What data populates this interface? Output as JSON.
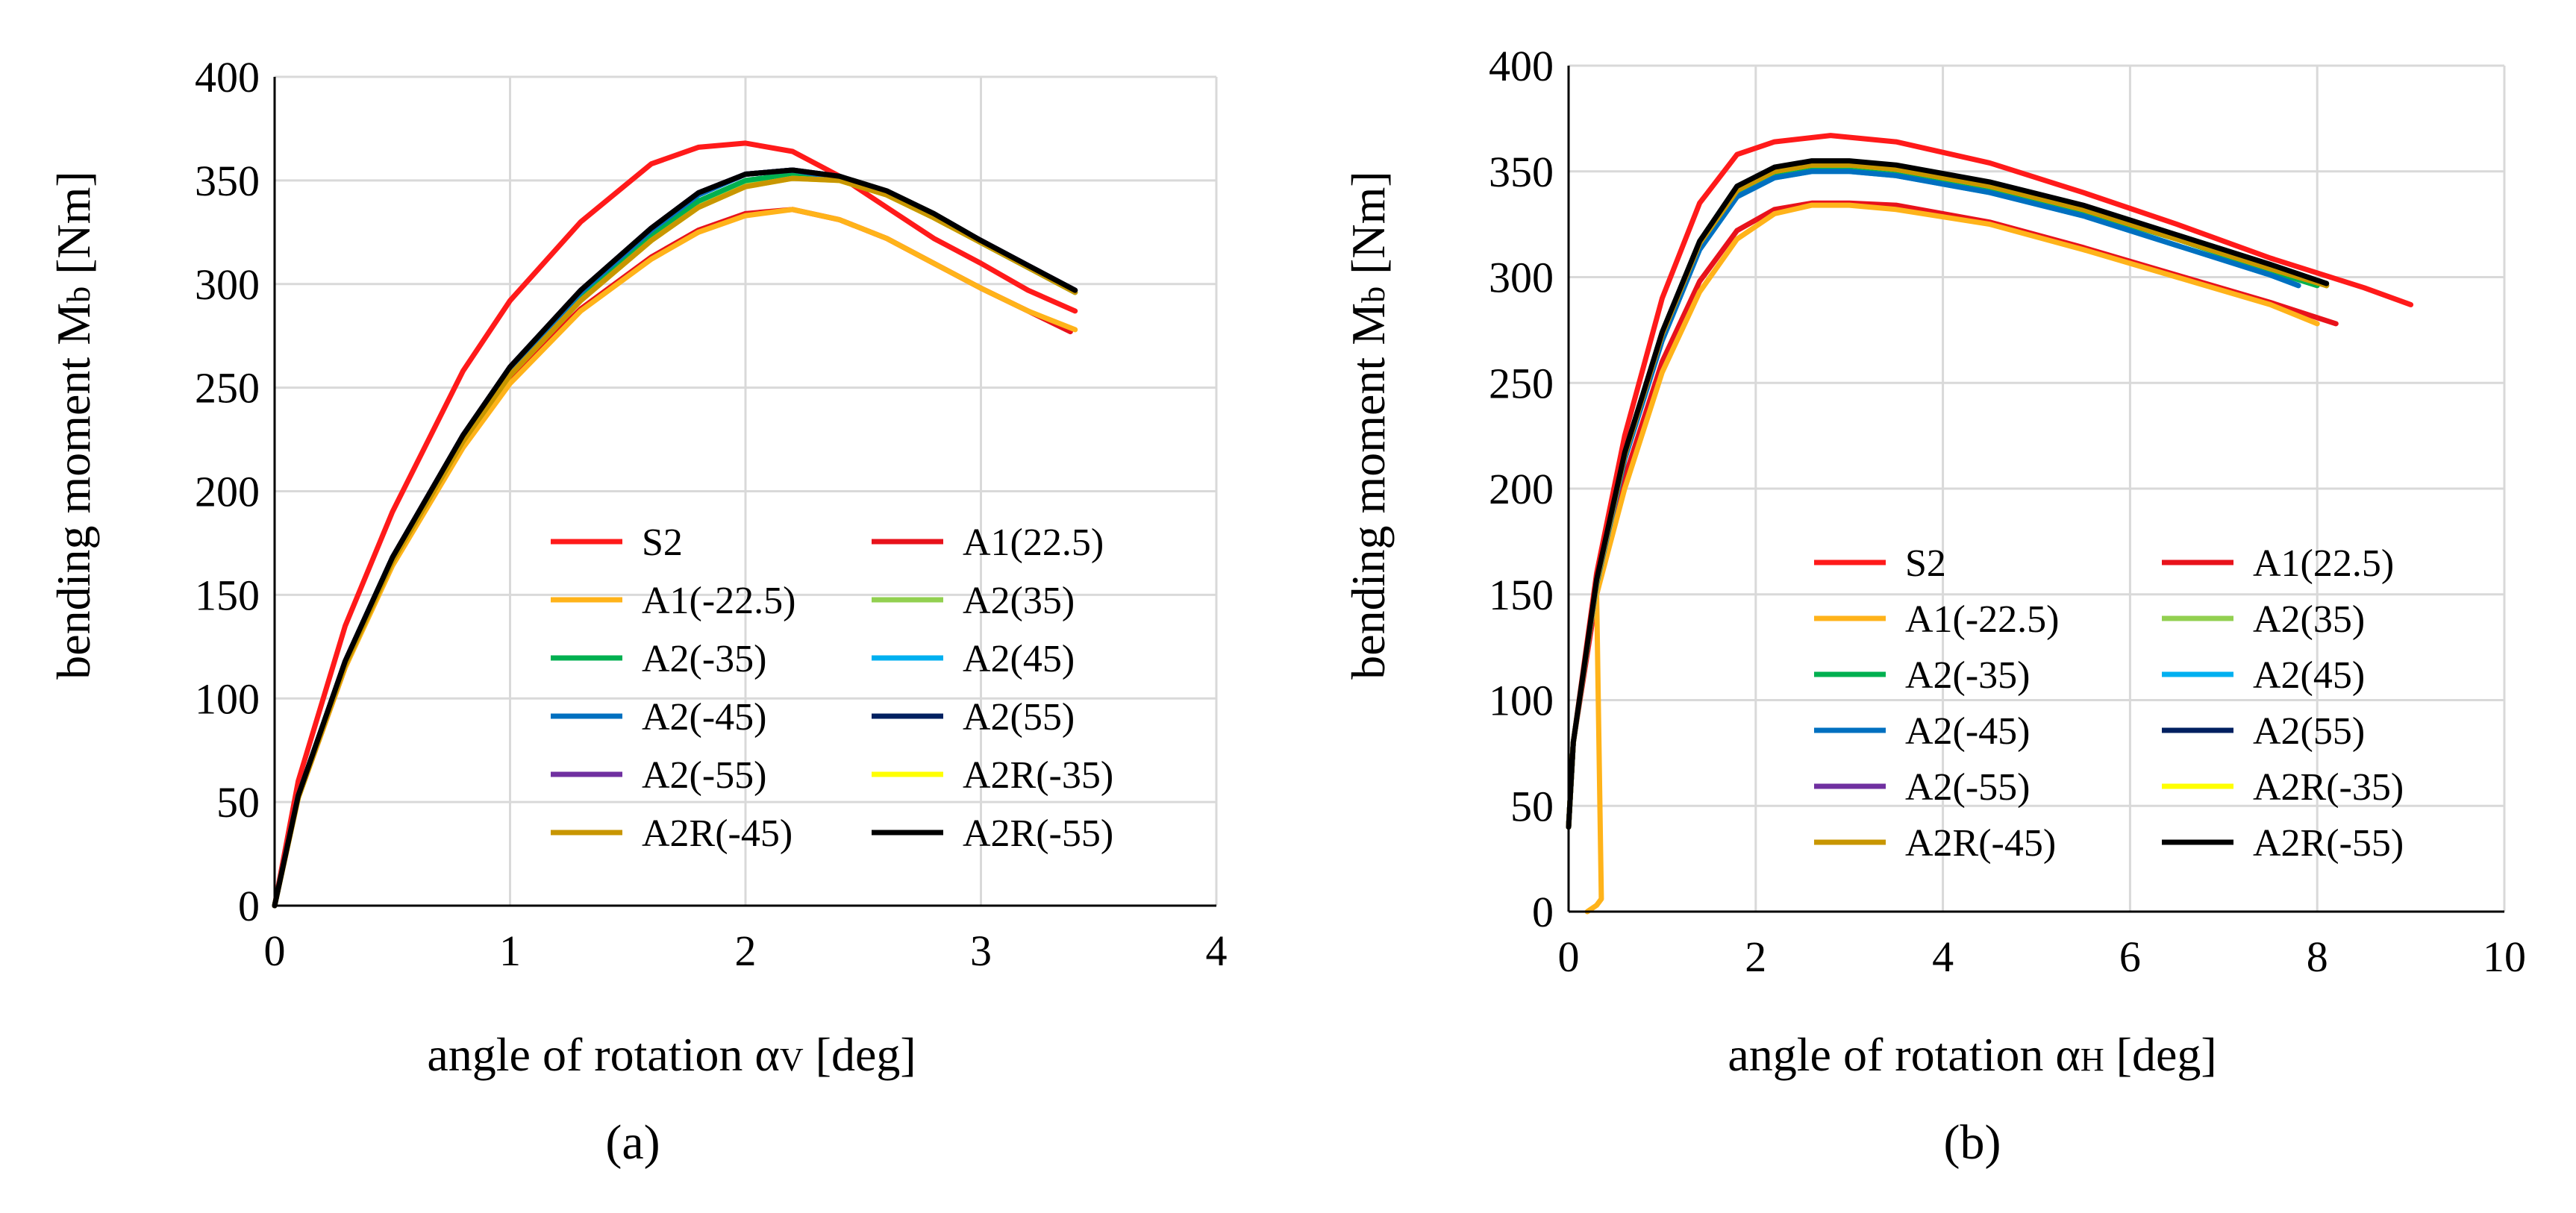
{
  "colors": {
    "S2": "#ff1a1a",
    "A1(22.5)": "#e8121b",
    "A1(-22.5)": "#ffb31a",
    "A2(35)": "#92d050",
    "A2(-35)": "#00b050",
    "A2(45)": "#00b0f0",
    "A2(-45)": "#0070c0",
    "A2(55)": "#002060",
    "A2(-55)": "#7030a0",
    "A2R(-35)": "#ffff00",
    "A2R(-45)": "#c89600",
    "A2R(-55)": "#000000"
  },
  "chart_data": [
    {
      "type": "line",
      "panel_label": "(a)",
      "xlabel_main": "angle of rotation α",
      "xlabel_sub": "V",
      "xlabel_tail": " [deg]",
      "ylabel_main": "bending moment M",
      "ylabel_sub": "b",
      "ylabel_tail": " [Nm]",
      "xlim": [
        0,
        4
      ],
      "ylim": [
        0,
        400
      ],
      "xticks": [
        "0",
        "1",
        "2",
        "3",
        "4"
      ],
      "yticks": [
        "0",
        "50",
        "100",
        "150",
        "200",
        "250",
        "300",
        "350",
        "400"
      ],
      "grid": true,
      "legend_position": "bottom-right",
      "series": [
        {
          "name": "S2",
          "x": [
            0,
            0.1,
            0.3,
            0.5,
            0.8,
            1.0,
            1.3,
            1.6,
            1.8,
            2.0,
            2.2,
            2.4,
            2.6,
            2.8,
            3.0,
            3.2,
            3.4
          ],
          "y": [
            0,
            60,
            135,
            190,
            258,
            292,
            330,
            358,
            366,
            368,
            364,
            352,
            337,
            322,
            310,
            297,
            287
          ]
        },
        {
          "name": "A1(22.5)",
          "x": [
            0,
            0.1,
            0.3,
            0.5,
            0.8,
            1.0,
            1.3,
            1.6,
            1.8,
            2.0,
            2.2,
            2.4,
            2.6,
            2.8,
            3.0,
            3.2,
            3.38
          ],
          "y": [
            0,
            52,
            115,
            165,
            222,
            254,
            288,
            313,
            326,
            334,
            336,
            331,
            322,
            310,
            298,
            287,
            277
          ]
        },
        {
          "name": "A1(-22.5)",
          "x": [
            0,
            0.1,
            0.3,
            0.5,
            0.8,
            1.0,
            1.3,
            1.6,
            1.8,
            2.0,
            2.2,
            2.4,
            2.6,
            2.8,
            3.0,
            3.2,
            3.4
          ],
          "y": [
            0,
            52,
            115,
            164,
            221,
            252,
            287,
            312,
            325,
            333,
            336,
            331,
            322,
            310,
            298,
            287,
            278
          ]
        },
        {
          "name": "A2(35)",
          "x": [
            0,
            0.1,
            0.3,
            0.5,
            0.8,
            1.0,
            1.3,
            1.6,
            1.8,
            2.0,
            2.2,
            2.4,
            2.6,
            2.8,
            3.0,
            3.2,
            3.4
          ],
          "y": [
            0,
            53,
            117,
            167,
            225,
            257,
            293,
            322,
            338,
            348,
            352,
            350,
            343,
            332,
            320,
            308,
            296
          ]
        },
        {
          "name": "A2(-35)",
          "x": [
            0,
            0.1,
            0.3,
            0.5,
            0.8,
            1.0,
            1.3,
            1.6,
            1.8,
            2.0,
            2.2,
            2.4,
            2.6,
            2.8,
            3.0,
            3.2,
            3.4
          ],
          "y": [
            0,
            53,
            117,
            167,
            225,
            258,
            294,
            323,
            340,
            350,
            353,
            351,
            344,
            333,
            320,
            308,
            296
          ]
        },
        {
          "name": "A2(45)",
          "x": [
            0,
            0.1,
            0.3,
            0.5,
            0.8,
            1.0,
            1.3,
            1.6,
            1.8,
            2.0,
            2.2,
            2.4,
            2.6,
            2.8,
            3.0,
            3.2,
            3.4
          ],
          "y": [
            0,
            53,
            118,
            168,
            226,
            259,
            296,
            326,
            343,
            353,
            355,
            351,
            344,
            333,
            320,
            308,
            296
          ]
        },
        {
          "name": "A2(-45)",
          "x": [
            0,
            0.1,
            0.3,
            0.5,
            0.8,
            1.0,
            1.3,
            1.6,
            1.8,
            2.0,
            2.2,
            2.4,
            2.6,
            2.8,
            3.0,
            3.2,
            3.4
          ],
          "y": [
            0,
            53,
            118,
            168,
            226,
            259,
            296,
            326,
            343,
            353,
            355,
            351,
            344,
            333,
            320,
            308,
            296
          ]
        },
        {
          "name": "A2(55)",
          "x": [
            0,
            0.1,
            0.3,
            0.5,
            0.8,
            1.0,
            1.3,
            1.6,
            1.8,
            2.0,
            2.2,
            2.4,
            2.6,
            2.8,
            3.0,
            3.2,
            3.4
          ],
          "y": [
            0,
            53,
            118,
            168,
            227,
            260,
            297,
            327,
            344,
            353,
            355,
            352,
            344,
            333,
            321,
            309,
            297
          ]
        },
        {
          "name": "A2(-55)",
          "x": [
            0,
            0.1,
            0.3,
            0.5,
            0.8,
            1.0,
            1.3,
            1.6,
            1.8,
            2.0,
            2.2,
            2.4,
            2.6,
            2.8,
            3.0,
            3.2,
            3.4
          ],
          "y": [
            0,
            53,
            118,
            168,
            227,
            260,
            297,
            327,
            344,
            353,
            355,
            352,
            344,
            333,
            321,
            309,
            297
          ]
        },
        {
          "name": "A2R(-35)",
          "x": [
            0,
            0.1,
            0.3,
            0.5,
            0.8,
            1.0,
            1.3,
            1.6,
            1.8,
            2.0,
            2.2,
            2.4,
            2.6,
            2.8,
            3.0,
            3.2,
            3.4
          ],
          "y": [
            0,
            52,
            116,
            166,
            224,
            256,
            292,
            321,
            337,
            347,
            351,
            350,
            343,
            332,
            320,
            308,
            296
          ]
        },
        {
          "name": "A2R(-45)",
          "x": [
            0,
            0.1,
            0.3,
            0.5,
            0.8,
            1.0,
            1.3,
            1.6,
            1.8,
            2.0,
            2.2,
            2.4,
            2.6,
            2.8,
            3.0,
            3.2,
            3.4
          ],
          "y": [
            0,
            52,
            116,
            166,
            224,
            256,
            292,
            321,
            337,
            347,
            351,
            350,
            343,
            332,
            320,
            308,
            296
          ]
        },
        {
          "name": "A2R(-55)",
          "x": [
            0,
            0.1,
            0.3,
            0.5,
            0.8,
            1.0,
            1.3,
            1.6,
            1.8,
            2.0,
            2.2,
            2.4,
            2.6,
            2.8,
            3.0,
            3.2,
            3.4
          ],
          "y": [
            0,
            53,
            118,
            168,
            227,
            260,
            297,
            327,
            344,
            353,
            355,
            352,
            345,
            334,
            321,
            309,
            297
          ]
        }
      ]
    },
    {
      "type": "line",
      "panel_label": "(b)",
      "xlabel_main": "angle of rotation α",
      "xlabel_sub": "H",
      "xlabel_tail": " [deg]",
      "ylabel_main": "bending moment M",
      "ylabel_sub": "b",
      "ylabel_tail": " [Nm]",
      "xlim": [
        0,
        10
      ],
      "ylim": [
        0,
        400
      ],
      "xticks": [
        "0",
        "2",
        "4",
        "6",
        "8",
        "10"
      ],
      "yticks": [
        "0",
        "50",
        "100",
        "150",
        "200",
        "250",
        "300",
        "350",
        "400"
      ],
      "grid": true,
      "legend_position": "bottom-right",
      "series": [
        {
          "name": "S2",
          "x": [
            0,
            0.05,
            0.3,
            0.6,
            1.0,
            1.4,
            1.8,
            2.2,
            2.8,
            3.5,
            4.5,
            5.5,
            6.5,
            7.5,
            8.5,
            9.0
          ],
          "y": [
            40,
            80,
            160,
            225,
            290,
            335,
            358,
            364,
            367,
            364,
            354,
            340,
            325,
            309,
            295,
            287
          ]
        },
        {
          "name": "A1(22.5)",
          "x": [
            0,
            0.05,
            0.3,
            0.6,
            1.0,
            1.4,
            1.8,
            2.2,
            2.6,
            3.0,
            3.5,
            4.5,
            5.5,
            6.5,
            7.5,
            8.2
          ],
          "y": [
            40,
            80,
            150,
            205,
            260,
            298,
            322,
            332,
            335,
            335,
            334,
            326,
            314,
            301,
            288,
            278
          ]
        },
        {
          "name": "A1(-22.5)",
          "x": [
            0.2,
            0.3,
            0.35,
            0.3,
            0.6,
            1.0,
            1.4,
            1.8,
            2.2,
            2.6,
            3.0,
            3.5,
            4.5,
            5.5,
            6.5,
            7.5,
            8.0
          ],
          "y": [
            0,
            3,
            6,
            150,
            200,
            255,
            293,
            318,
            330,
            334,
            334,
            332,
            325,
            313,
            300,
            287,
            278
          ]
        },
        {
          "name": "A2(35)",
          "x": [
            0,
            0.05,
            0.3,
            0.6,
            1.0,
            1.4,
            1.8,
            2.2,
            2.6,
            3.0,
            3.5,
            4.5,
            5.5,
            6.5,
            7.5,
            8.0
          ],
          "y": [
            40,
            80,
            155,
            215,
            272,
            315,
            340,
            349,
            352,
            352,
            350,
            342,
            331,
            318,
            303,
            296
          ]
        },
        {
          "name": "A2(-35)",
          "x": [
            0,
            0.05,
            0.3,
            0.6,
            1.0,
            1.4,
            1.8,
            2.2,
            2.6,
            3.0,
            3.5,
            4.5,
            5.5,
            6.5,
            7.5,
            8.0
          ],
          "y": [
            40,
            80,
            155,
            215,
            272,
            315,
            340,
            349,
            352,
            352,
            350,
            342,
            331,
            318,
            303,
            296
          ]
        },
        {
          "name": "A2(45)",
          "x": [
            0,
            0.05,
            0.3,
            0.6,
            1.0,
            1.4,
            1.8,
            2.2,
            2.6,
            3.0,
            3.5,
            4.5,
            5.5,
            6.5,
            7.5,
            7.8
          ],
          "y": [
            40,
            80,
            155,
            214,
            270,
            313,
            338,
            347,
            350,
            350,
            348,
            340,
            329,
            315,
            301,
            296
          ]
        },
        {
          "name": "A2(-45)",
          "x": [
            0,
            0.05,
            0.3,
            0.6,
            1.0,
            1.4,
            1.8,
            2.2,
            2.6,
            3.0,
            3.5,
            4.5,
            5.5,
            6.5,
            7.5,
            7.8
          ],
          "y": [
            40,
            80,
            155,
            214,
            270,
            313,
            338,
            347,
            350,
            350,
            348,
            340,
            329,
            315,
            301,
            296
          ]
        },
        {
          "name": "A2(55)",
          "x": [
            0,
            0.05,
            0.3,
            0.6,
            1.0,
            1.4,
            1.8,
            2.2,
            2.6,
            3.0,
            3.5,
            4.5,
            5.5,
            6.5,
            7.5,
            8.1
          ],
          "y": [
            40,
            80,
            156,
            216,
            273,
            316,
            342,
            351,
            354,
            354,
            352,
            344,
            333,
            319,
            305,
            296
          ]
        },
        {
          "name": "A2(-55)",
          "x": [
            0,
            0.05,
            0.3,
            0.6,
            1.0,
            1.4,
            1.8,
            2.2,
            2.6,
            3.0,
            3.5,
            4.5,
            5.5,
            6.5,
            7.5,
            8.1
          ],
          "y": [
            40,
            80,
            156,
            216,
            273,
            316,
            342,
            351,
            354,
            354,
            352,
            344,
            333,
            319,
            305,
            296
          ]
        },
        {
          "name": "A2R(-35)",
          "x": [
            0,
            0.05,
            0.3,
            0.6,
            1.0,
            1.4,
            1.8,
            2.2,
            2.6,
            3.0,
            3.5,
            4.5,
            5.5,
            6.5,
            7.5,
            8.1
          ],
          "y": [
            40,
            80,
            156,
            216,
            273,
            316,
            341,
            350,
            353,
            353,
            351,
            343,
            332,
            318,
            304,
            296
          ]
        },
        {
          "name": "A2R(-45)",
          "x": [
            0,
            0.05,
            0.3,
            0.6,
            1.0,
            1.4,
            1.8,
            2.2,
            2.6,
            3.0,
            3.5,
            4.5,
            5.5,
            6.5,
            7.5,
            8.1
          ],
          "y": [
            40,
            80,
            156,
            216,
            273,
            316,
            341,
            350,
            353,
            353,
            351,
            343,
            332,
            318,
            304,
            296
          ]
        },
        {
          "name": "A2R(-55)",
          "x": [
            0,
            0.05,
            0.3,
            0.6,
            1.0,
            1.4,
            1.8,
            2.2,
            2.6,
            3.0,
            3.5,
            4.5,
            5.5,
            6.5,
            7.5,
            8.1
          ],
          "y": [
            40,
            80,
            157,
            217,
            274,
            317,
            343,
            352,
            355,
            355,
            353,
            345,
            334,
            320,
            306,
            297
          ]
        }
      ]
    }
  ]
}
